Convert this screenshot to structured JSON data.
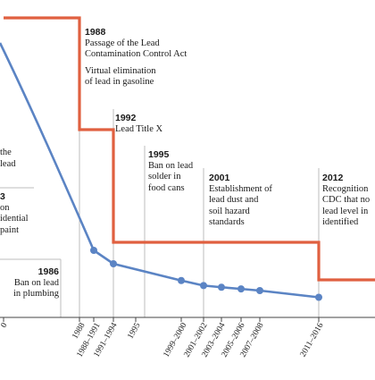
{
  "chart_data": {
    "type": "line",
    "x_ticks": [
      "0",
      "1988",
      "1988–1991",
      "1991–1994",
      "1995",
      "1999–2000",
      "2001–2002",
      "2003–2004",
      "2005–2006",
      "2007–2008",
      "2011–2016"
    ],
    "series": [
      {
        "values": [
          {
            "x": "1988–1991",
            "y": 0.8
          },
          {
            "x": "1991–1994",
            "y": 0.76
          },
          {
            "x": "1999–2000",
            "y": 0.71
          },
          {
            "x": "2001–2002",
            "y": 0.695
          },
          {
            "x": "2003–2004",
            "y": 0.69
          },
          {
            "x": "2005–2006",
            "y": 0.685
          },
          {
            "x": "2007–2008",
            "y": 0.68
          },
          {
            "x": "2011–2016",
            "y": 0.66
          }
        ],
        "color": "#5b84c4"
      },
      {
        "steps": [
          {
            "from": "0",
            "to": "1988",
            "y": 2.0
          },
          {
            "from": "1988",
            "to": "1991–1994",
            "y": 1.0
          },
          {
            "from": "1991–1994",
            "to": "2011–2016",
            "y": 0.25
          },
          {
            "from": "2011–2016",
            "to": "right-edge",
            "y": 0.1
          }
        ],
        "color": "#e06040"
      }
    ],
    "annotations": [
      {
        "lines": [
          "the",
          "lead"
        ]
      },
      {
        "year": "3",
        "lines": [
          "on",
          "idential",
          "paint"
        ]
      },
      {
        "year": "1986",
        "lines": [
          "Ban on lead",
          "in plumbing"
        ]
      },
      {
        "year": "1988",
        "lines": [
          "Passage of the Lead",
          "Contamination Control Act",
          "",
          "Virtual elimination",
          "of lead in gasoline"
        ]
      },
      {
        "year": "1992",
        "lines": [
          "Lead Title X"
        ]
      },
      {
        "year": "1995",
        "lines": [
          "Ban on lead",
          "solder in",
          "food cans"
        ]
      },
      {
        "year": "2001",
        "lines": [
          "Establishment of",
          "lead dust and",
          "soil hazard",
          "standards"
        ]
      },
      {
        "year": "2012",
        "lines": [
          "Recognition",
          "CDC that no",
          "lead level in",
          "identified"
        ]
      }
    ],
    "colors": {
      "blood_lead": "#5b84c4",
      "threshold": "#e06040",
      "guide": "#bdbdbd"
    }
  }
}
